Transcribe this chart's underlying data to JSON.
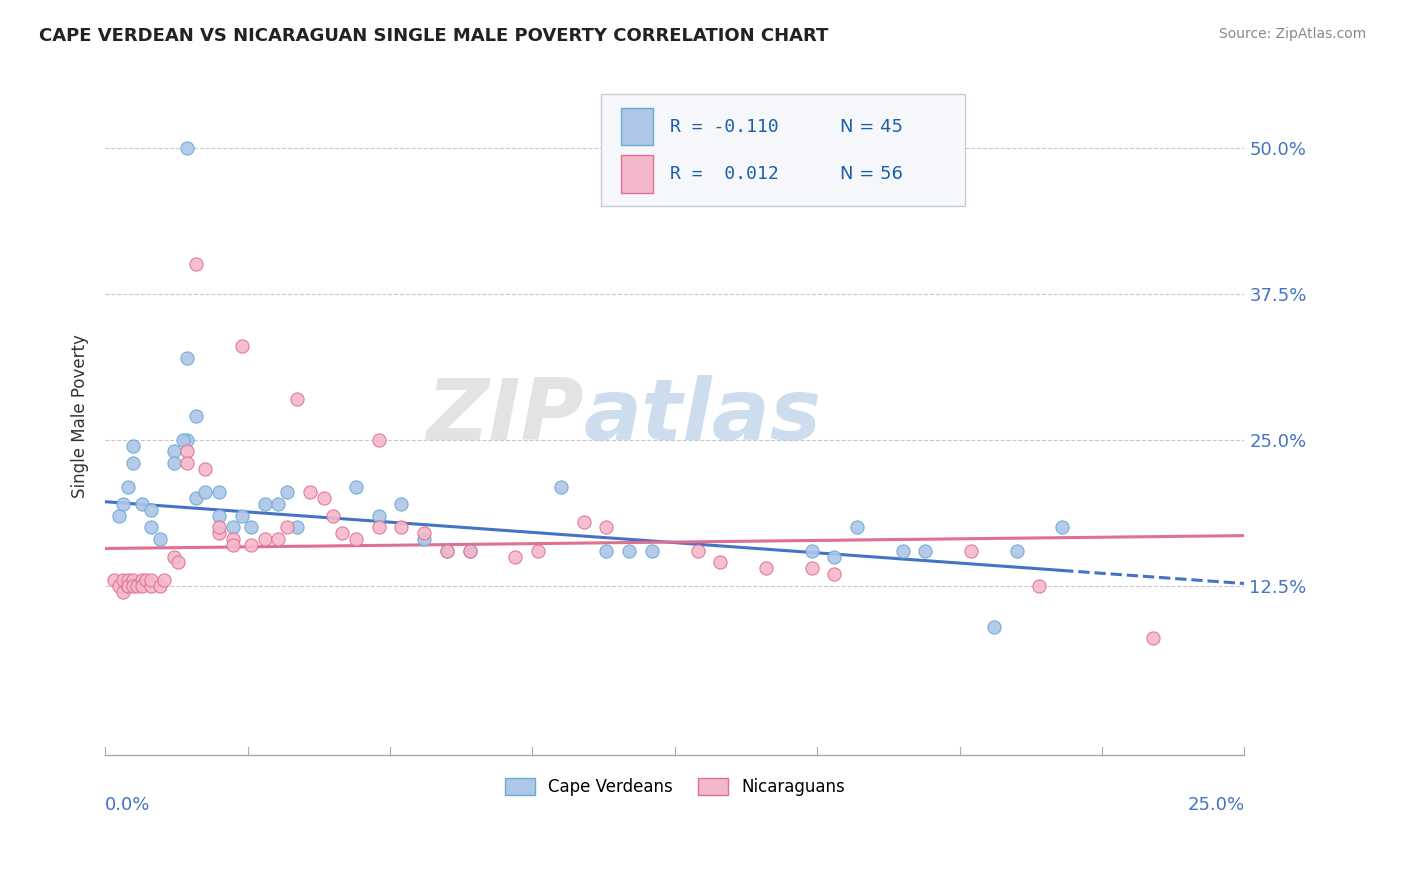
{
  "title": "CAPE VERDEAN VS NICARAGUAN SINGLE MALE POVERTY CORRELATION CHART",
  "source": "Source: ZipAtlas.com",
  "ylabel": "Single Male Poverty",
  "y_tick_positions": [
    0.125,
    0.25,
    0.375,
    0.5
  ],
  "y_tick_labels": [
    "12.5%",
    "25.0%",
    "37.5%",
    "50.0%"
  ],
  "x_range": [
    0.0,
    0.25
  ],
  "y_range": [
    -0.02,
    0.56
  ],
  "watermark_zip": "ZIP",
  "watermark_atlas": "atlas",
  "cape_verdean_color": "#aec6e8",
  "cape_verdean_edge": "#6aaad4",
  "nicaraguan_color": "#f4b8cb",
  "nicaraguan_edge": "#e07090",
  "line_blue": "#4472c4",
  "line_pink": "#e07090",
  "legend_box_color": "#f0f4f8",
  "legend_box_edge": "#c0c8d0",
  "cv_r": "R = -0.110",
  "cv_n": "N = 45",
  "nic_r": "R =  0.012",
  "nic_n": "N = 56",
  "cape_verdeans_x": [
    0.018,
    0.018,
    0.02,
    0.018,
    0.006,
    0.006,
    0.005,
    0.004,
    0.003,
    0.008,
    0.01,
    0.01,
    0.012,
    0.015,
    0.015,
    0.017,
    0.02,
    0.022,
    0.025,
    0.025,
    0.028,
    0.03,
    0.032,
    0.035,
    0.038,
    0.04,
    0.042,
    0.055,
    0.06,
    0.065,
    0.07,
    0.075,
    0.08,
    0.1,
    0.11,
    0.115,
    0.12,
    0.155,
    0.16,
    0.165,
    0.175,
    0.18,
    0.195,
    0.2,
    0.21
  ],
  "cape_verdeans_y": [
    0.5,
    0.32,
    0.27,
    0.25,
    0.245,
    0.23,
    0.21,
    0.195,
    0.185,
    0.195,
    0.19,
    0.175,
    0.165,
    0.24,
    0.23,
    0.25,
    0.2,
    0.205,
    0.205,
    0.185,
    0.175,
    0.185,
    0.175,
    0.195,
    0.195,
    0.205,
    0.175,
    0.21,
    0.185,
    0.195,
    0.165,
    0.155,
    0.155,
    0.21,
    0.155,
    0.155,
    0.155,
    0.155,
    0.15,
    0.175,
    0.155,
    0.155,
    0.09,
    0.155,
    0.175
  ],
  "nicaraguans_x": [
    0.002,
    0.003,
    0.004,
    0.004,
    0.005,
    0.005,
    0.005,
    0.006,
    0.006,
    0.007,
    0.008,
    0.008,
    0.009,
    0.01,
    0.01,
    0.012,
    0.013,
    0.015,
    0.016,
    0.018,
    0.018,
    0.02,
    0.022,
    0.025,
    0.025,
    0.028,
    0.028,
    0.03,
    0.032,
    0.035,
    0.038,
    0.04,
    0.042,
    0.045,
    0.048,
    0.05,
    0.052,
    0.055,
    0.06,
    0.06,
    0.065,
    0.07,
    0.075,
    0.08,
    0.09,
    0.095,
    0.105,
    0.11,
    0.13,
    0.135,
    0.145,
    0.155,
    0.16,
    0.19,
    0.205,
    0.23
  ],
  "nicaraguans_y": [
    0.13,
    0.125,
    0.12,
    0.13,
    0.125,
    0.13,
    0.125,
    0.13,
    0.125,
    0.125,
    0.13,
    0.125,
    0.13,
    0.125,
    0.13,
    0.125,
    0.13,
    0.15,
    0.145,
    0.24,
    0.23,
    0.4,
    0.225,
    0.17,
    0.175,
    0.165,
    0.16,
    0.33,
    0.16,
    0.165,
    0.165,
    0.175,
    0.285,
    0.205,
    0.2,
    0.185,
    0.17,
    0.165,
    0.25,
    0.175,
    0.175,
    0.17,
    0.155,
    0.155,
    0.15,
    0.155,
    0.18,
    0.175,
    0.155,
    0.145,
    0.14,
    0.14,
    0.135,
    0.155,
    0.125,
    0.08
  ]
}
